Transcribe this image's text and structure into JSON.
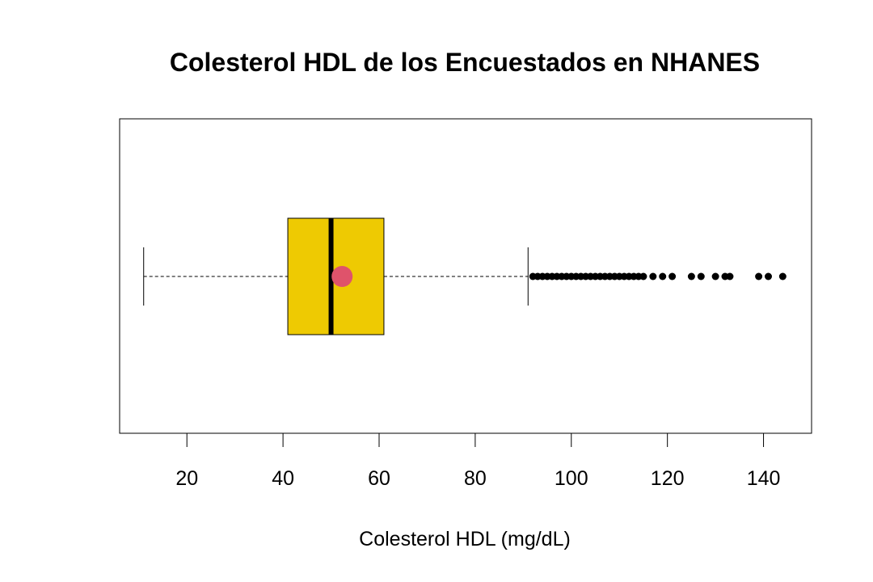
{
  "chart_data": {
    "type": "boxplot",
    "orientation": "horizontal",
    "title": "Colesterol HDL de los Encuestados en NHANES",
    "xlabel": "Colesterol HDL (mg/dL)",
    "ylabel": "",
    "xlim": [
      6,
      150
    ],
    "x_ticks": [
      20,
      40,
      60,
      80,
      100,
      120,
      140
    ],
    "x_tick_labels": [
      "20",
      "40",
      "60",
      "80",
      "100",
      "120",
      "140"
    ],
    "box": {
      "whisker_low": 11,
      "q1": 41,
      "median": 50,
      "q3": 61,
      "whisker_high": 91,
      "mean": 52.3
    },
    "outliers": [
      92,
      93,
      94,
      95,
      96,
      97,
      98,
      99,
      100,
      101,
      102,
      103,
      104,
      105,
      106,
      107,
      108,
      109,
      110,
      111,
      112,
      113,
      114,
      115,
      117,
      119,
      121,
      125,
      127,
      130,
      132,
      133,
      139,
      141,
      144
    ],
    "colors": {
      "box_fill": "#EECA02",
      "mean_marker": "#DF536B",
      "lines": "#000000"
    },
    "grid": false,
    "legend": "none"
  }
}
